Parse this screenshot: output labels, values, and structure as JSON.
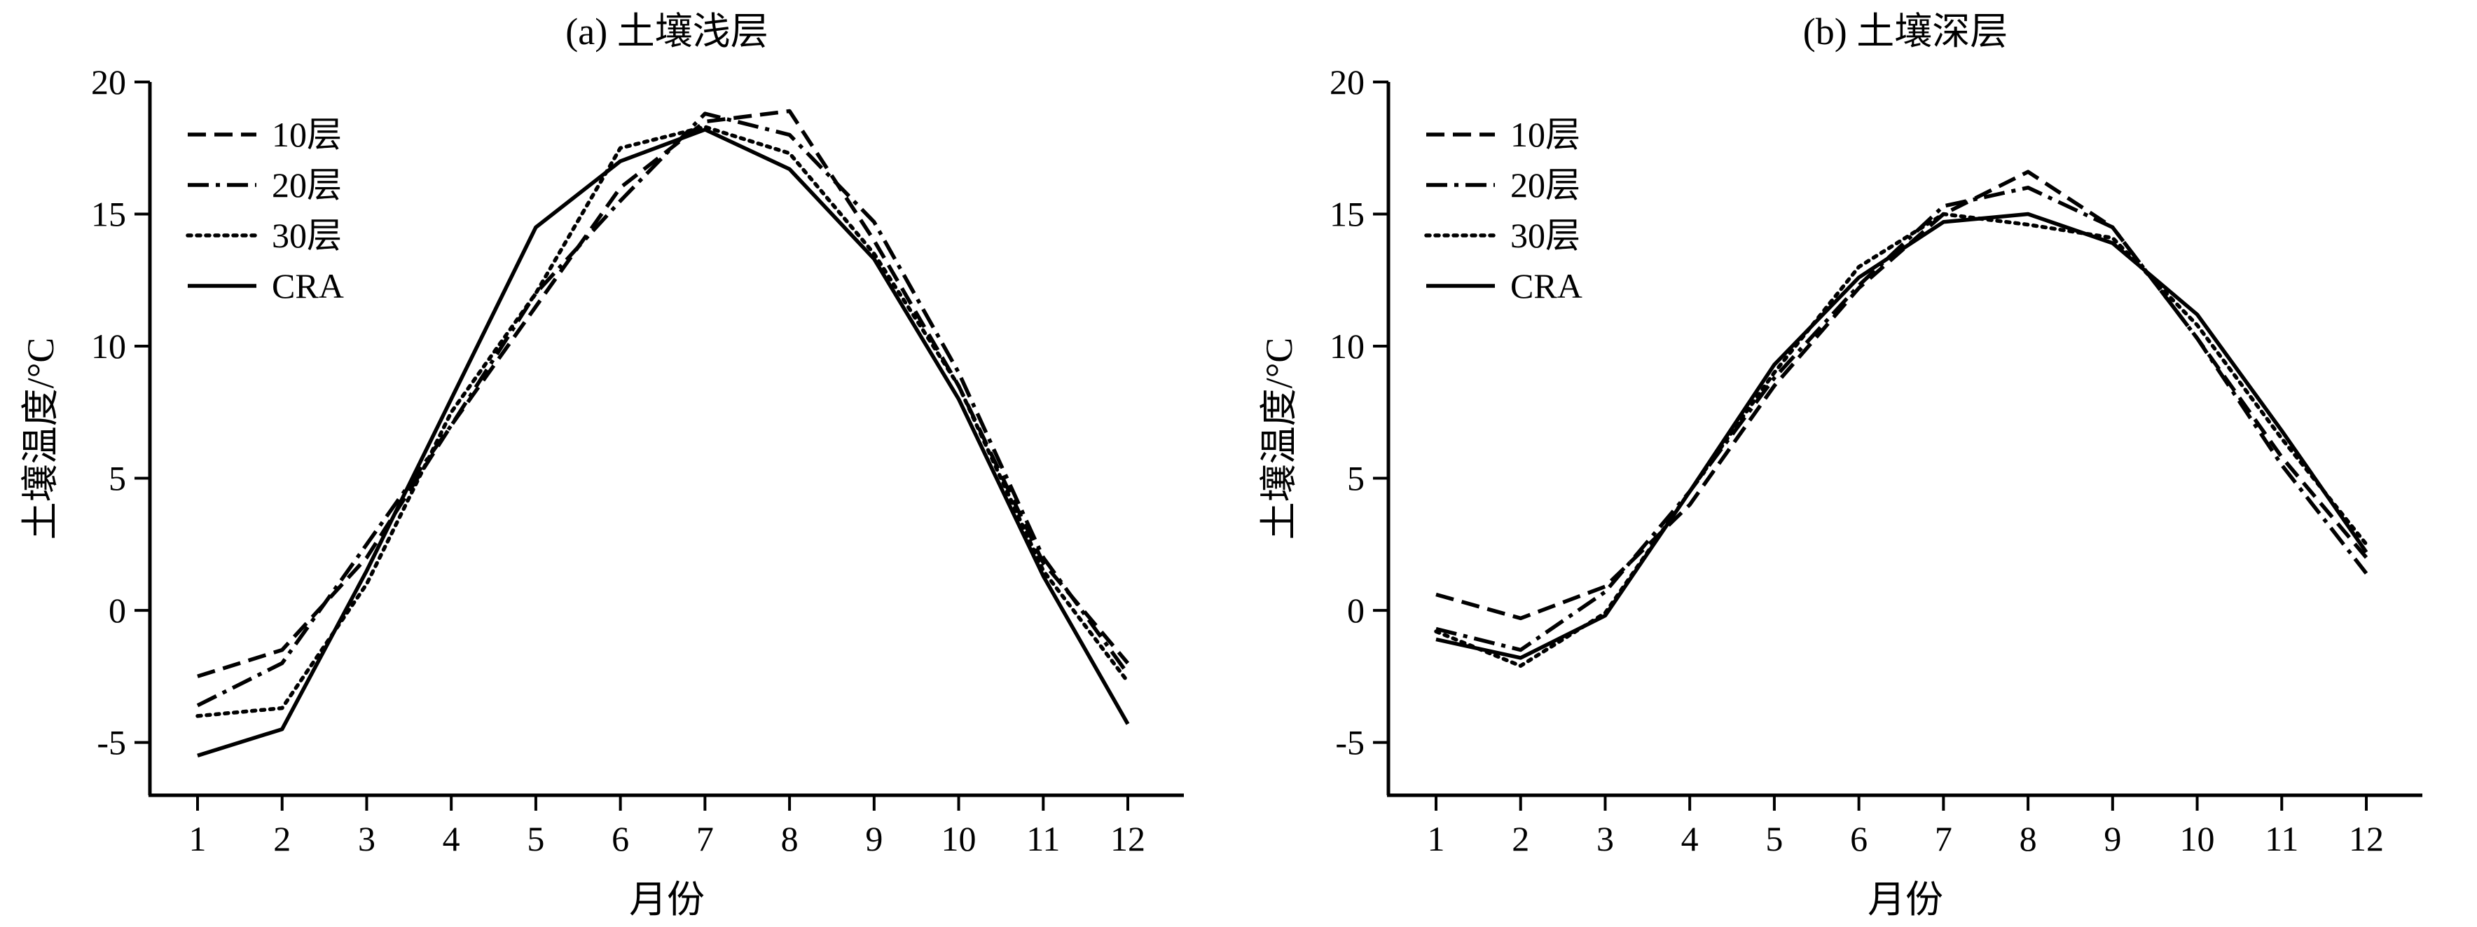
{
  "chart_data": [
    {
      "type": "line",
      "title": "(a) 土壤浅层",
      "xlabel": "月份",
      "ylabel": "土壤温度/°C",
      "ylim": [
        -7,
        20
      ],
      "yticks": [
        -5,
        0,
        5,
        10,
        15,
        20
      ],
      "legend_position": "top-left",
      "categories": [
        "1",
        "2",
        "3",
        "4",
        "5",
        "6",
        "7",
        "8",
        "9",
        "10",
        "11",
        "12"
      ],
      "series": [
        {
          "name": "10层",
          "style": "dashed",
          "values": [
            -2.5,
            -1.5,
            2.0,
            7.0,
            11.5,
            16.0,
            18.5,
            18.9,
            14.0,
            8.5,
            1.8,
            -2.0
          ]
        },
        {
          "name": "20层",
          "style": "dashdot",
          "values": [
            -3.6,
            -2.0,
            2.5,
            7.0,
            12.0,
            15.5,
            18.8,
            18.0,
            14.7,
            9.0,
            2.0,
            -2.4
          ]
        },
        {
          "name": "30层",
          "style": "dotted",
          "values": [
            -4.0,
            -3.7,
            1.0,
            7.5,
            12.0,
            17.5,
            18.3,
            17.3,
            13.5,
            8.5,
            1.5,
            -2.7
          ]
        },
        {
          "name": "CRA",
          "style": "solid",
          "values": [
            -5.5,
            -4.5,
            1.5,
            8.0,
            14.5,
            17.0,
            18.2,
            16.7,
            13.3,
            8.0,
            1.3,
            -4.3
          ]
        }
      ]
    },
    {
      "type": "line",
      "title": "(b) 土壤深层",
      "xlabel": "月份",
      "ylabel": "土壤温度/°C",
      "ylim": [
        -7,
        20
      ],
      "yticks": [
        -5,
        0,
        5,
        10,
        15,
        20
      ],
      "legend_position": "top-left",
      "categories": [
        "1",
        "2",
        "3",
        "4",
        "5",
        "6",
        "7",
        "8",
        "9",
        "10",
        "11",
        "12"
      ],
      "series": [
        {
          "name": "10层",
          "style": "dashed",
          "values": [
            0.6,
            -0.3,
            0.9,
            4.0,
            8.5,
            12.2,
            15.0,
            16.6,
            14.5,
            10.3,
            5.8,
            2.0
          ]
        },
        {
          "name": "20层",
          "style": "dashdot",
          "values": [
            -0.7,
            -1.5,
            0.7,
            4.5,
            8.8,
            12.3,
            15.3,
            16.0,
            14.5,
            10.3,
            5.5,
            1.4
          ]
        },
        {
          "name": "30层",
          "style": "dotted",
          "values": [
            -0.8,
            -2.1,
            -0.1,
            4.5,
            9.0,
            13.0,
            15.0,
            14.6,
            14.1,
            10.8,
            6.5,
            2.5
          ]
        },
        {
          "name": "CRA",
          "style": "solid",
          "values": [
            -1.1,
            -1.8,
            -0.2,
            4.5,
            9.3,
            12.6,
            14.7,
            15.0,
            13.9,
            11.2,
            6.8,
            2.2
          ]
        }
      ]
    }
  ]
}
